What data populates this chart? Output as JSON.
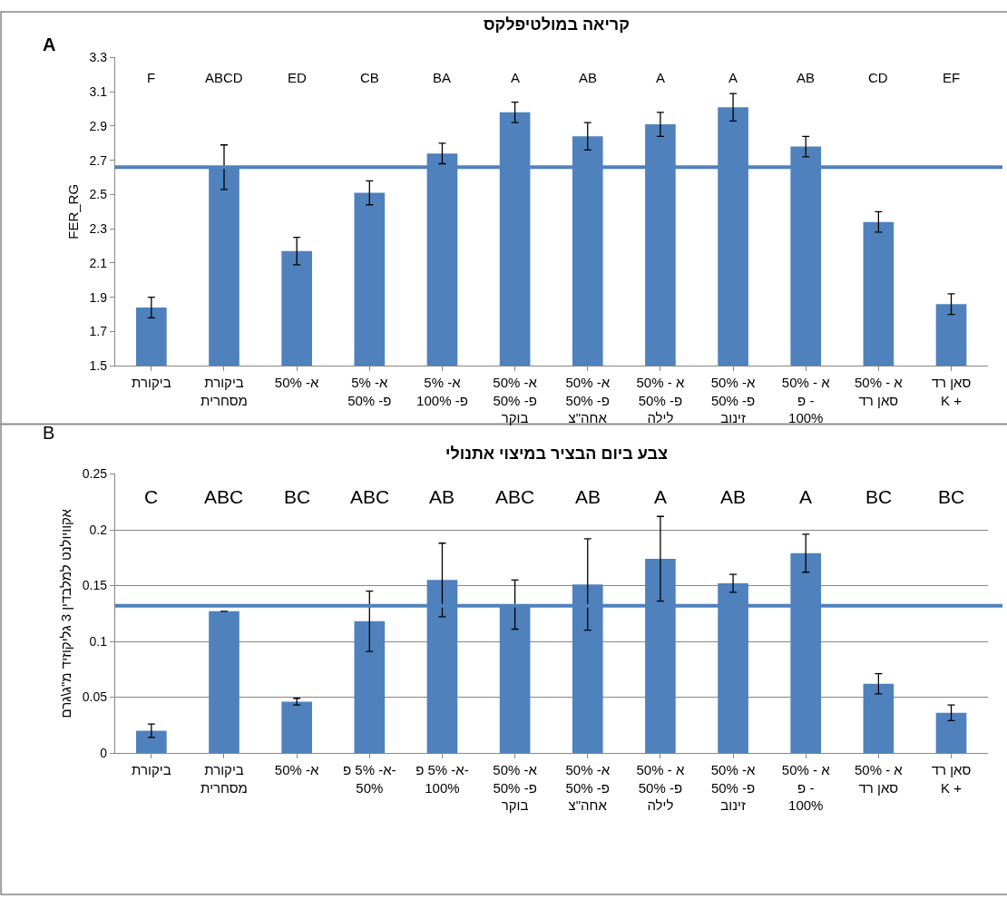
{
  "chart_data": [
    {
      "type": "bar",
      "title": "קריאה במולטיפלקס",
      "ylabel": "FER_RG",
      "categories": [
        "ביקורת",
        "ביקורת\nמסחרית",
        "א- 50%",
        "א- 5%\nפ- 50%",
        "א- 5%\nפ- 100%",
        "א- 50%\nפ- 50%\nבוקר",
        "א- 50%\nפ- 50%\nאחה\"צ",
        "א - 50%\nפ- 50%\nלילה",
        "א- 50%\nפ- 50%\nזינוב",
        "א - 50%\nפ -\n100%",
        "א - 50%\nסאן רד",
        "סאן רד\nK +"
      ],
      "values": [
        1.84,
        2.66,
        2.17,
        2.51,
        2.74,
        2.98,
        2.84,
        2.91,
        3.01,
        2.78,
        2.34,
        1.86
      ],
      "errors": [
        0.06,
        0.13,
        0.08,
        0.07,
        0.06,
        0.06,
        0.08,
        0.07,
        0.08,
        0.06,
        0.06,
        0.06
      ],
      "color": "#4f81bd",
      "ylim": [
        1.5,
        3.3
      ],
      "yticks": [
        1.5,
        1.7,
        1.9,
        2.1,
        2.3,
        2.5,
        2.7,
        2.9,
        3.1,
        3.3
      ],
      "grid": false,
      "ref_lines": [
        {
          "axis": "y",
          "value": 2.66,
          "color": "#4f81bd"
        }
      ],
      "annotations": [
        "A",
        "F",
        "ABCD",
        "ED",
        "CB",
        "BA",
        "A",
        "AB",
        "A",
        "A",
        "AB",
        "CD",
        "EF"
      ]
    },
    {
      "type": "bar",
      "title": "צבע ביום הבציר במיצוי אתנולי",
      "ylabel": "אקוויולנט למלבדין 3 גליקוזיד מ\"ג\\גרם",
      "categories": [
        "ביקורת",
        "ביקורת\nמסחרית",
        "א- 50%",
        "א- 5% פ-\n50%",
        "א- 5% פ-\n100%",
        "א- 50%\nפ- 50%\nבוקר",
        "א- 50%\nפ- 50%\nאחה\"צ",
        "א - 50%\nפ- 50%\nלילה",
        "א- 50%\nפ- 50%\nזינוב",
        "א - 50%\nפ -\n100%",
        "א - 50%\nסאן רד",
        "סאן רד\nK +"
      ],
      "values": [
        0.02,
        0.127,
        0.046,
        0.118,
        0.155,
        0.133,
        0.151,
        0.174,
        0.152,
        0.179,
        0.062,
        0.036
      ],
      "errors": [
        0.006,
        null,
        0.003,
        0.027,
        0.033,
        0.022,
        0.041,
        0.038,
        0.008,
        0.017,
        0.009,
        0.007
      ],
      "color": "#4f81bd",
      "ylim": [
        0,
        0.25
      ],
      "yticks": [
        0,
        0.05,
        0.1,
        0.15,
        0.2,
        0.25
      ],
      "grid": "y",
      "ref_lines": [
        {
          "axis": "y",
          "value": 0.132,
          "color": "#4f81bd"
        }
      ],
      "annotations": [
        "B",
        "C",
        "ABC",
        "BC",
        "ABC",
        "AB",
        "ABC",
        "AB",
        "A",
        "AB",
        "A",
        "BC",
        "BC"
      ]
    }
  ]
}
